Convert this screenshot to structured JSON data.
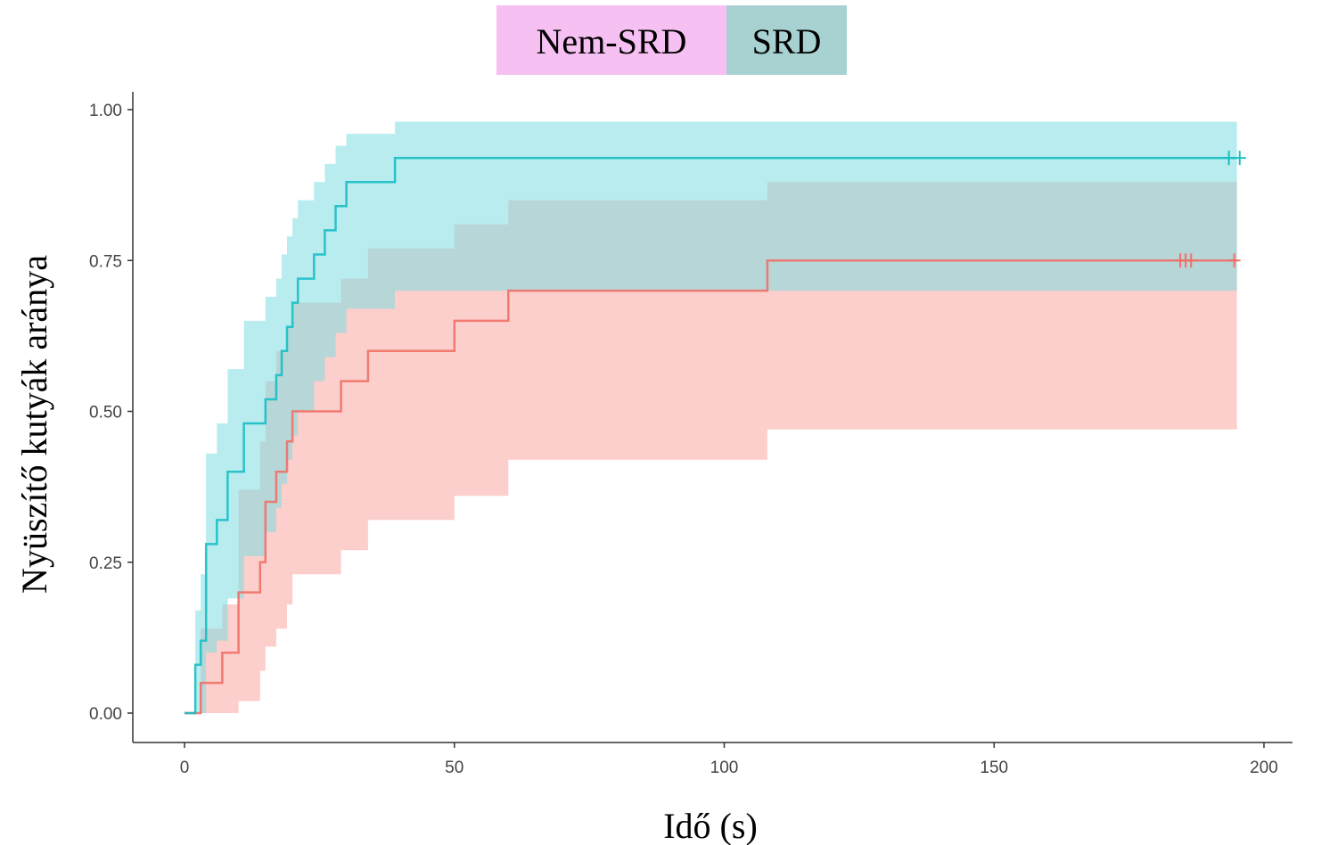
{
  "chart_data": {
    "type": "line",
    "step": true,
    "xlabel": "Idő (s)",
    "ylabel": "Nyüszítő kutyák aránya",
    "xlim": [
      0,
      200
    ],
    "ylim": [
      0,
      1
    ],
    "xticks": [
      "0",
      "50",
      "100",
      "150",
      "200"
    ],
    "yticks": [
      "0.00",
      "0.25",
      "0.50",
      "0.75",
      "1.00"
    ],
    "grid": false,
    "legend_position": "top",
    "series": [
      {
        "name": "Nem-SRD",
        "color": "#f07067",
        "band_color": "#f9a7a3",
        "legend_color": "#f7c0f3",
        "x": [
          0,
          2.5,
          3,
          7,
          10,
          14,
          15,
          17,
          19,
          20,
          25,
          29,
          34,
          50,
          60,
          108,
          195
        ],
        "y": [
          0,
          0,
          0.05,
          0.1,
          0.2,
          0.25,
          0.35,
          0.4,
          0.45,
          0.5,
          0.5,
          0.55,
          0.6,
          0.65,
          0.7,
          0.75,
          0.75
        ],
        "lower": [
          0,
          0,
          0,
          0,
          0.02,
          0.07,
          0.11,
          0.14,
          0.18,
          0.23,
          0.23,
          0.27,
          0.32,
          0.36,
          0.42,
          0.47,
          0.47
        ],
        "upper": [
          0,
          0,
          0.14,
          0.18,
          0.37,
          0.45,
          0.55,
          0.6,
          0.64,
          0.68,
          0.68,
          0.72,
          0.77,
          0.81,
          0.85,
          0.88,
          0.88
        ],
        "censored_x": [
          184.5,
          185.5,
          186.5,
          194.5
        ]
      },
      {
        "name": "SRD",
        "color": "#17bfc4",
        "band_color": "#7edde0",
        "legend_color": "#a8d1d1",
        "x": [
          0,
          1.5,
          2,
          3,
          4,
          6,
          8,
          11,
          15,
          17,
          18,
          19,
          20,
          21,
          24,
          26,
          28,
          30,
          33,
          39,
          195
        ],
        "y": [
          0,
          0,
          0.08,
          0.12,
          0.28,
          0.32,
          0.4,
          0.48,
          0.52,
          0.56,
          0.6,
          0.64,
          0.68,
          0.72,
          0.76,
          0.8,
          0.84,
          0.88,
          0.88,
          0.92,
          0.92
        ],
        "lower": [
          0,
          0,
          0,
          0,
          0.1,
          0.12,
          0.19,
          0.26,
          0.3,
          0.34,
          0.38,
          0.42,
          0.46,
          0.5,
          0.55,
          0.59,
          0.63,
          0.67,
          0.67,
          0.7,
          0.7
        ],
        "upper": [
          0,
          0,
          0.17,
          0.23,
          0.43,
          0.48,
          0.57,
          0.65,
          0.69,
          0.72,
          0.76,
          0.79,
          0.82,
          0.85,
          0.88,
          0.91,
          0.94,
          0.96,
          0.96,
          0.98,
          0.98
        ],
        "censored_x": [
          193.5,
          195.5
        ]
      }
    ]
  }
}
